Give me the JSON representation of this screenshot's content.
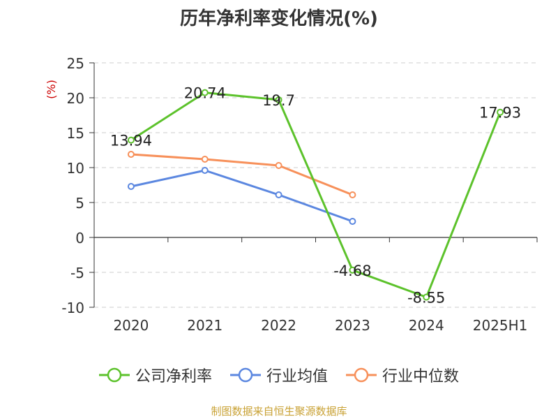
{
  "chart_data": {
    "type": "line",
    "title": "历年净利率变化情况(%)",
    "ylabel": "(%)",
    "xlabel": "",
    "categories": [
      "2020",
      "2021",
      "2022",
      "2023",
      "2024",
      "2025H1"
    ],
    "ylim": [
      -10,
      25
    ],
    "yticks": [
      -10,
      -5,
      0,
      5,
      10,
      15,
      20,
      25
    ],
    "grid": "horizontal dashed",
    "legend_position": "bottom",
    "series": [
      {
        "name": "公司净利率",
        "color": "#5cc22b",
        "values": [
          13.94,
          20.74,
          19.7,
          -4.68,
          -8.55,
          17.93
        ],
        "labels": [
          "13.94",
          "20.74",
          "19.7",
          "-4.68",
          "-8.55",
          "17.93"
        ]
      },
      {
        "name": "行业均值",
        "color": "#5b87e0",
        "values": [
          7.3,
          9.6,
          6.1,
          2.3,
          null,
          null
        ]
      },
      {
        "name": "行业中位数",
        "color": "#f7905a",
        "values": [
          11.9,
          11.2,
          10.3,
          6.1,
          null,
          null
        ]
      }
    ]
  },
  "source": "制图数据来自恒生聚源数据库"
}
